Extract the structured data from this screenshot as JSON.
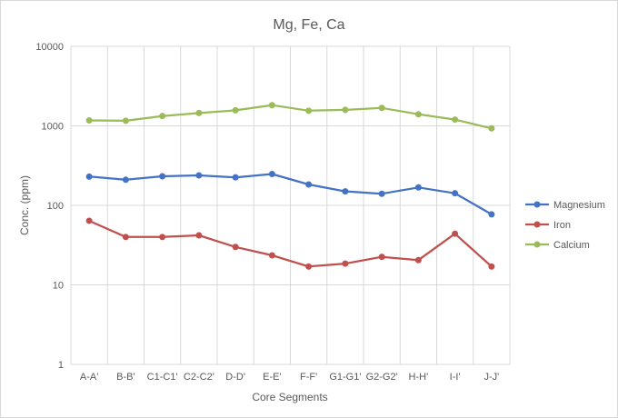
{
  "chart_data": {
    "type": "line",
    "title": "Mg, Fe, Ca",
    "xlabel": "Core Segments",
    "ylabel": "Conc. (ppm)",
    "yscale": "log",
    "ylim": [
      1,
      10000
    ],
    "yticks": [
      "1",
      "10",
      "100",
      "1000",
      "10000"
    ],
    "grid": true,
    "legend_position": "right",
    "categories": [
      "A-A'",
      "B-B'",
      "C1-C1'",
      "C2-C2'",
      "D-D'",
      "E-E'",
      "F-F'",
      "G1-G1'",
      "G2-G2'",
      "H-H'",
      "I-I'",
      "J-J'"
    ],
    "series": [
      {
        "name": "Magnesium",
        "color": "#4472c4",
        "values": [
          230,
          210,
          232,
          238,
          225,
          248,
          183,
          150,
          140,
          168,
          142,
          77
        ]
      },
      {
        "name": "Iron",
        "color": "#c0504d",
        "values": [
          64,
          40,
          40,
          42,
          30,
          23.5,
          17,
          18.5,
          22.5,
          20.5,
          44,
          17
        ]
      },
      {
        "name": "Calcium",
        "color": "#9bbb59",
        "values": [
          1170,
          1160,
          1330,
          1450,
          1570,
          1820,
          1550,
          1590,
          1680,
          1400,
          1200,
          930
        ]
      }
    ]
  }
}
